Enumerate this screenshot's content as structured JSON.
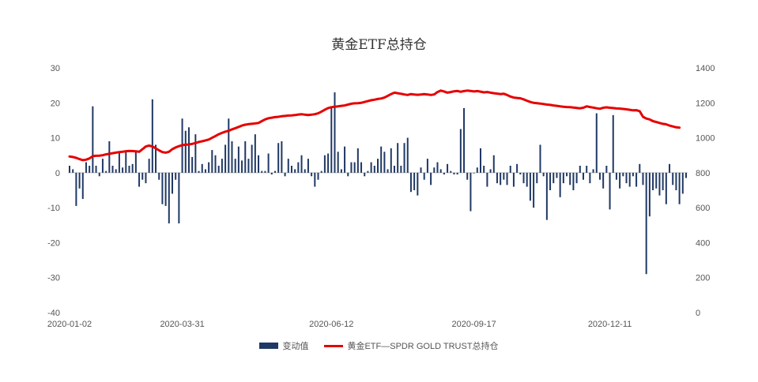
{
  "chart_data": {
    "type": "bar+line",
    "title": "黄金ETF总持仓",
    "xlabel": "",
    "ylabel": "",
    "x_tick_labels": [
      "2020-01-02",
      "2020-03-31",
      "2020-06-12",
      "2020-09-17",
      "2020-12-11"
    ],
    "y_left": {
      "ticks": [
        30,
        20,
        10,
        0,
        -10,
        -20,
        -30,
        -40
      ],
      "range": [
        -40,
        30
      ]
    },
    "y_right": {
      "ticks": [
        1400,
        1200,
        1000,
        800,
        600,
        400,
        200,
        0
      ],
      "range": [
        0,
        1400
      ]
    },
    "legend_placement": "bottom-center",
    "grid": false,
    "series": [
      {
        "name": "变动值",
        "type": "bar",
        "axis": "left",
        "color": "#1f3864",
        "values": [
          2,
          1,
          -9.5,
          -4.5,
          -7.5,
          3,
          2,
          19,
          2,
          -1,
          4,
          0.5,
          9,
          2,
          1,
          6,
          1.5,
          6,
          2,
          2.5,
          6,
          -4,
          -2,
          -3,
          4,
          21,
          8,
          -2,
          -9,
          -9.5,
          -14.5,
          -6,
          -2,
          -14.5,
          15.5,
          12,
          13,
          4.5,
          11,
          0.5,
          2.5,
          1,
          3,
          6.5,
          5,
          2,
          4,
          8,
          15.5,
          9,
          4,
          7.5,
          3.5,
          9,
          4,
          8,
          11,
          5,
          0.5,
          0.5,
          5.5,
          -0.5,
          0.5,
          8.5,
          9,
          -1,
          4,
          2,
          1,
          3,
          5,
          1,
          4,
          -1,
          -4,
          -2,
          0.5,
          5,
          5.5,
          19,
          23,
          6,
          1,
          7.5,
          -1,
          3,
          3,
          7,
          3,
          -1,
          0.5,
          3,
          2,
          4,
          7.5,
          6,
          1,
          7,
          2,
          8.5,
          2,
          8.5,
          10,
          -5.5,
          -5,
          -6.5,
          1.5,
          -2,
          4,
          -3.5,
          1.5,
          3,
          1,
          -0.5,
          2.5,
          0.5,
          -0.5,
          -0.5,
          12.5,
          18.5,
          -2,
          -11,
          0,
          1.5,
          7,
          2,
          -4,
          1,
          5,
          -3,
          -3.5,
          -2,
          -3.5,
          2,
          -4,
          2.5,
          -0.5,
          -3,
          -4,
          -8,
          -10,
          -3,
          8,
          -1,
          -13.5,
          -5,
          -3,
          -1.5,
          -7,
          -3,
          -1,
          -3.5,
          -5,
          -3,
          2,
          -2,
          2,
          -3,
          1,
          17,
          -2,
          -4.5,
          2,
          -10.5,
          16.5,
          -2,
          -4.5,
          -1,
          -3,
          -4,
          -1,
          -4,
          2.5,
          -3.5,
          -29,
          -12.5,
          -5,
          -4.5,
          -6.5,
          -5,
          -9,
          2.5,
          -3.5,
          -5,
          -9,
          -6,
          -1.5
        ],
        "bar_display": {
          "x_dates": [
            "2020-01-02",
            "2020-03-31",
            "2020-06-12",
            "2020-09-17",
            "2020-12-11"
          ],
          "tick_bar_indices": [
            0,
            34,
            79,
            122,
            163
          ]
        }
      },
      {
        "name": "黄金ETF—SPDR GOLD TRUST总持仓",
        "type": "line",
        "axis": "right",
        "color": "#e60000",
        "values": [
          893,
          890,
          885,
          878,
          872,
          875,
          882,
          895,
          897,
          898,
          900,
          905,
          908,
          912,
          915,
          918,
          920,
          923,
          925,
          924,
          922,
          920,
          935,
          950,
          955,
          950,
          940,
          928,
          918,
          915,
          920,
          935,
          945,
          952,
          958,
          960,
          962,
          965,
          970,
          976,
          980,
          985,
          990,
          1000,
          1010,
          1020,
          1028,
          1035,
          1040,
          1048,
          1055,
          1062,
          1070,
          1075,
          1078,
          1080,
          1082,
          1085,
          1095,
          1105,
          1112,
          1115,
          1118,
          1120,
          1123,
          1125,
          1127,
          1128,
          1130,
          1133,
          1135,
          1132,
          1130,
          1132,
          1135,
          1140,
          1150,
          1160,
          1170,
          1175,
          1178,
          1180,
          1183,
          1185,
          1190,
          1195,
          1197,
          1198,
          1200,
          1205,
          1210,
          1215,
          1218,
          1222,
          1225,
          1230,
          1240,
          1250,
          1258,
          1255,
          1252,
          1248,
          1245,
          1250,
          1248,
          1246,
          1248,
          1250,
          1248,
          1245,
          1248,
          1262,
          1270,
          1265,
          1258,
          1262,
          1266,
          1268,
          1263,
          1267,
          1270,
          1268,
          1265,
          1267,
          1264,
          1260,
          1262,
          1258,
          1255,
          1253,
          1250,
          1252,
          1245,
          1236,
          1230,
          1228,
          1226,
          1220,
          1212,
          1205,
          1200,
          1198,
          1196,
          1193,
          1190,
          1188,
          1185,
          1183,
          1180,
          1178,
          1176,
          1175,
          1173,
          1171,
          1169,
          1172,
          1180,
          1176,
          1173,
          1169,
          1166,
          1172,
          1174,
          1172,
          1170,
          1168,
          1167,
          1165,
          1163,
          1160,
          1157,
          1158,
          1152,
          1120,
          1110,
          1105,
          1095,
          1090,
          1085,
          1080,
          1077,
          1070,
          1065,
          1060,
          1058
        ]
      }
    ]
  }
}
